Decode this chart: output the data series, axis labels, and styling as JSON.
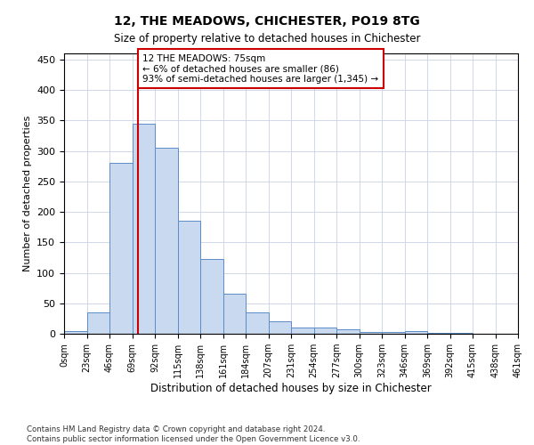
{
  "title": "12, THE MEADOWS, CHICHESTER, PO19 8TG",
  "subtitle": "Size of property relative to detached houses in Chichester",
  "xlabel": "Distribution of detached houses by size in Chichester",
  "ylabel": "Number of detached properties",
  "bar_color": "#c9d9ef",
  "bar_edge_color": "#5b8cc8",
  "bin_labels": [
    "0sqm",
    "23sqm",
    "46sqm",
    "69sqm",
    "92sqm",
    "115sqm",
    "138sqm",
    "161sqm",
    "184sqm",
    "207sqm",
    "231sqm",
    "254sqm",
    "277sqm",
    "300sqm",
    "323sqm",
    "346sqm",
    "369sqm",
    "392sqm",
    "415sqm",
    "438sqm",
    "461sqm"
  ],
  "bar_heights": [
    5,
    35,
    280,
    345,
    305,
    185,
    122,
    65,
    35,
    20,
    10,
    10,
    8,
    3,
    3,
    5,
    2,
    1,
    0,
    0
  ],
  "ylim": [
    0,
    460
  ],
  "yticks": [
    0,
    50,
    100,
    150,
    200,
    250,
    300,
    350,
    400,
    450
  ],
  "vline_x": 2.26,
  "vline_color": "#cc0000",
  "annotation_text": "12 THE MEADOWS: 75sqm\n← 6% of detached houses are smaller (86)\n93% of semi-detached houses are larger (1,345) →",
  "annotation_box_color": "#ffffff",
  "annotation_box_edge": "#cc0000",
  "footer_line1": "Contains HM Land Registry data © Crown copyright and database right 2024.",
  "footer_line2": "Contains public sector information licensed under the Open Government Licence v3.0.",
  "background_color": "#ffffff",
  "grid_color": "#d0d8e8"
}
